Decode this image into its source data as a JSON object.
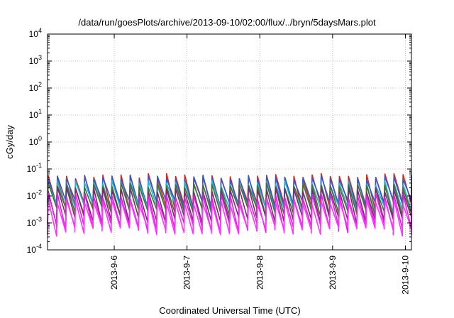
{
  "chart_data": {
    "type": "line",
    "title": "/data/run/goesPlots/archive/2013-09-10/02:00/flux/../bryn/5daysMars.plot",
    "xlabel": "Coordinated Universal Time (UTC)",
    "ylabel": "cGy/day",
    "yscale": "log",
    "ylim": [
      0.0001,
      10000
    ],
    "yticks": [
      {
        "value": 0.0001,
        "base": "10",
        "exp": "-4"
      },
      {
        "value": 0.001,
        "base": "10",
        "exp": "-3"
      },
      {
        "value": 0.01,
        "base": "10",
        "exp": "-2"
      },
      {
        "value": 0.1,
        "base": "10",
        "exp": "-1"
      },
      {
        "value": 1,
        "base": "10",
        "exp": "0"
      },
      {
        "value": 10,
        "base": "10",
        "exp": "1"
      },
      {
        "value": 100,
        "base": "10",
        "exp": "2"
      },
      {
        "value": 1000,
        "base": "10",
        "exp": "3"
      },
      {
        "value": 10000,
        "base": "10",
        "exp": "4"
      }
    ],
    "xlim": [
      "2013-09-05 02:00",
      "2013-09-10 02:00"
    ],
    "xticks": [
      {
        "value": "2013-09-06 00:00",
        "label": "2013-9-6"
      },
      {
        "value": "2013-09-07 00:00",
        "label": "2013-9-7"
      },
      {
        "value": "2013-09-08 00:00",
        "label": "2013-9-8"
      },
      {
        "value": "2013-09-09 00:00",
        "label": "2013-9-9"
      },
      {
        "value": "2013-09-10 00:00",
        "label": "2013-9-10"
      }
    ],
    "grid": true,
    "sawtooth_period_hours": 3,
    "series": [
      {
        "color": "#d9261c",
        "peak": 0.055,
        "trough": 0.005
      },
      {
        "color": "#2a5bd7",
        "peak": 0.05,
        "trough": 0.006
      },
      {
        "color": "#1fb8c8",
        "peak": 0.03,
        "trough": 0.004
      },
      {
        "color": "#4a6e2a",
        "peak": 0.025,
        "trough": 0.003
      },
      {
        "color": "#7a2a6e",
        "peak": 0.018,
        "trough": 0.0015
      },
      {
        "color": "#e61ce6",
        "peak": 0.01,
        "trough": 0.0008
      },
      {
        "color": "#ff33ff",
        "peak": 0.006,
        "trough": 0.0006
      }
    ]
  }
}
